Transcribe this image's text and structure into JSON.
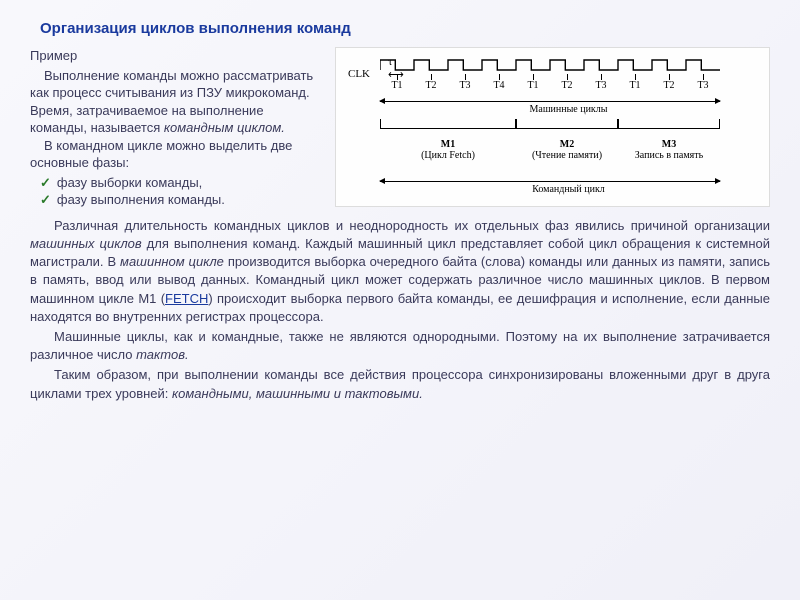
{
  "title": "Организация циклов выполнения команд",
  "left": {
    "example": "Пример",
    "p1a": "Выполнение команды можно рассматривать как процесс считывания из ПЗУ микрокоманд. Время, затрачиваемое на выполнение команды, называется ",
    "p1b": "командным циклом.",
    "p2": "В командном цикле можно выделить две основные фазы:",
    "phase1": "фазу выборки команды,",
    "phase2": "фазу выполнения команды."
  },
  "body": {
    "p1a": "Различная длительность командных циклов и неоднородность их отдельных фаз явились причиной организации ",
    "p1b": "машинных циклов",
    "p1c": " для выполнения команд. Каждый машинный цикл представляет собой цикл обращения к системной магистрали. В ",
    "p1d": "машинном цикле",
    "p1e": " производится выборка очередного байта (слова) команды или данных из памяти, запись в память, ввод или вывод данных. Командный цикл может содержать различное число машинных циклов. В первом машинном цикле M1 (",
    "p1f": "FETCH",
    "p1g": ") происходит выборка первого байта команды, ее дешифрация и исполнение, если данные находятся во внутренних регистрах процессора.",
    "p2a": "Машинные циклы, как и командные, также не являются однородными. Поэтому на их выполнение затрачивается различное число ",
    "p2b": "тактов.",
    "p3a": "Таким образом, при выполнении команды все действия процессора синхронизированы вложенными друг в друга циклами трех уровней: ",
    "p3b": "командными, машинными и тактовыми."
  },
  "diagram": {
    "clk_label": "CLK",
    "tau": "τ",
    "ticks": [
      "T1",
      "T2",
      "T3",
      "T4",
      "T1",
      "T2",
      "T3",
      "T1",
      "T2",
      "T3"
    ],
    "machine_cycles_label": "Машинные циклы",
    "m1_label": "M1",
    "m1_sub": "(Цикл Fetch)",
    "m2_label": "M2",
    "m2_sub": "(Чтение памяти)",
    "m3_label": "M3",
    "m3_sub": "Запись в память",
    "cmd_cycle_label": "Командный цикл",
    "tick_width": 34,
    "groups": [
      4,
      3,
      3
    ],
    "clock": {
      "high": 4,
      "low": 14,
      "period": 34,
      "cycles": 10,
      "stroke": "#000000",
      "stroke_width": 1.4
    },
    "colors": {
      "line": "#000000",
      "bg": "#fefefe"
    }
  }
}
